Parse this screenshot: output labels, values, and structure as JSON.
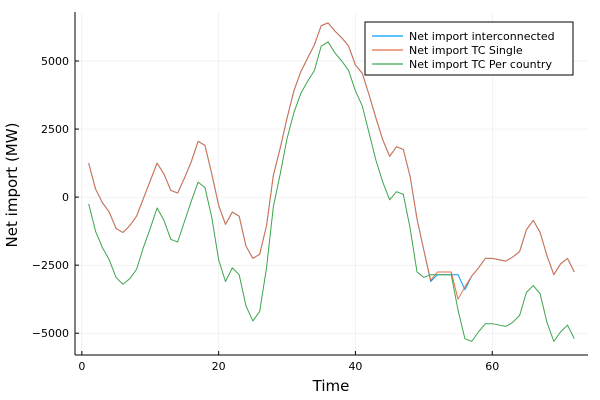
{
  "chart_data": {
    "type": "line",
    "xlabel": "Time",
    "ylabel": "Net import (MW)",
    "xlim": [
      -1,
      74
    ],
    "ylim": [
      -5800,
      6800
    ],
    "xticks": [
      0,
      20,
      40,
      60
    ],
    "yticks": [
      -5000,
      -2500,
      0,
      2500,
      5000
    ],
    "xtick_labels": [
      "0",
      "20",
      "40",
      "60"
    ],
    "ytick_labels": [
      "−5000",
      "−2500",
      "0",
      "2500",
      "5000"
    ],
    "grid": true,
    "legend_position": "top-right",
    "series": [
      {
        "name": "Net import interconnected",
        "color": "#009AFA",
        "x": [
          1,
          2,
          3,
          4,
          5,
          6,
          7,
          8,
          9,
          10,
          11,
          12,
          13,
          14,
          15,
          16,
          17,
          18,
          19,
          20,
          21,
          22,
          23,
          24,
          25,
          26,
          27,
          28,
          29,
          30,
          31,
          32,
          33,
          34,
          35,
          36,
          37,
          38,
          39,
          40,
          41,
          42,
          43,
          44,
          45,
          46,
          47,
          48,
          49,
          50,
          51,
          52,
          53,
          54,
          55,
          56,
          57,
          58,
          59,
          60,
          61,
          62,
          63,
          64,
          65,
          66,
          67,
          68,
          69,
          70,
          71,
          72
        ],
        "y": [
          1250,
          300,
          -200,
          -550,
          -1150,
          -1300,
          -1050,
          -700,
          -50,
          600,
          1250,
          850,
          250,
          150,
          700,
          1300,
          2050,
          1900,
          850,
          -300,
          -1000,
          -550,
          -700,
          -1800,
          -2250,
          -2100,
          -1050,
          800,
          1800,
          2900,
          3900,
          4600,
          5100,
          5600,
          6300,
          6400,
          6100,
          5850,
          5550,
          4850,
          4550,
          3750,
          2900,
          2100,
          1500,
          1850,
          1750,
          750,
          -800,
          -1950,
          -3100,
          -2850,
          -2850,
          -2850,
          -2850,
          -3400,
          -2900,
          -2600,
          -2250,
          -2250,
          -2300,
          -2350,
          -2200,
          -2000,
          -1200,
          -850,
          -1300,
          -2150,
          -2850,
          -2450,
          -2250,
          -2750
        ]
      },
      {
        "name": "Net import TC Single",
        "color": "#E26F46",
        "x": [
          1,
          2,
          3,
          4,
          5,
          6,
          7,
          8,
          9,
          10,
          11,
          12,
          13,
          14,
          15,
          16,
          17,
          18,
          19,
          20,
          21,
          22,
          23,
          24,
          25,
          26,
          27,
          28,
          29,
          30,
          31,
          32,
          33,
          34,
          35,
          36,
          37,
          38,
          39,
          40,
          41,
          42,
          43,
          44,
          45,
          46,
          47,
          48,
          49,
          50,
          51,
          52,
          53,
          54,
          55,
          56,
          57,
          58,
          59,
          60,
          61,
          62,
          63,
          64,
          65,
          66,
          67,
          68,
          69,
          70,
          71,
          72
        ],
        "y": [
          1250,
          300,
          -200,
          -550,
          -1150,
          -1300,
          -1050,
          -700,
          -50,
          600,
          1250,
          850,
          250,
          150,
          700,
          1300,
          2050,
          1900,
          850,
          -300,
          -1000,
          -550,
          -700,
          -1800,
          -2250,
          -2100,
          -1050,
          800,
          1800,
          2900,
          3900,
          4600,
          5100,
          5600,
          6300,
          6400,
          6100,
          5850,
          5550,
          4850,
          4550,
          3750,
          2900,
          2100,
          1500,
          1850,
          1750,
          750,
          -800,
          -1950,
          -3050,
          -2750,
          -2750,
          -2750,
          -3750,
          -3300,
          -2900,
          -2600,
          -2250,
          -2250,
          -2300,
          -2350,
          -2200,
          -2000,
          -1200,
          -850,
          -1300,
          -2150,
          -2850,
          -2450,
          -2250,
          -2750
        ]
      },
      {
        "name": "Net import TC Per country",
        "color": "#3DA44D",
        "x": [
          1,
          2,
          3,
          4,
          5,
          6,
          7,
          8,
          9,
          10,
          11,
          12,
          13,
          14,
          15,
          16,
          17,
          18,
          19,
          20,
          21,
          22,
          23,
          24,
          25,
          26,
          27,
          28,
          29,
          30,
          31,
          32,
          33,
          34,
          35,
          36,
          37,
          38,
          39,
          40,
          41,
          42,
          43,
          44,
          45,
          46,
          47,
          48,
          49,
          50,
          51,
          52,
          53,
          54,
          55,
          56,
          57,
          58,
          59,
          60,
          61,
          62,
          63,
          64,
          65,
          66,
          67,
          68,
          69,
          70,
          71,
          72
        ],
        "y": [
          -250,
          -1250,
          -1850,
          -2300,
          -2950,
          -3200,
          -3000,
          -2650,
          -1850,
          -1150,
          -400,
          -850,
          -1550,
          -1650,
          -900,
          -150,
          550,
          350,
          -750,
          -2300,
          -3100,
          -2600,
          -2850,
          -4000,
          -4550,
          -4200,
          -2600,
          -350,
          850,
          2150,
          3100,
          3800,
          4250,
          4650,
          5550,
          5700,
          5300,
          5000,
          4650,
          3900,
          3350,
          2350,
          1350,
          550,
          -100,
          200,
          100,
          -1150,
          -2750,
          -2950,
          -2850,
          -2850,
          -2850,
          -2850,
          -4150,
          -5200,
          -5300,
          -4950,
          -4650,
          -4650,
          -4700,
          -4750,
          -4600,
          -4350,
          -3500,
          -3250,
          -3550,
          -4600,
          -5300,
          -4950,
          -4700,
          -5200
        ]
      }
    ]
  }
}
